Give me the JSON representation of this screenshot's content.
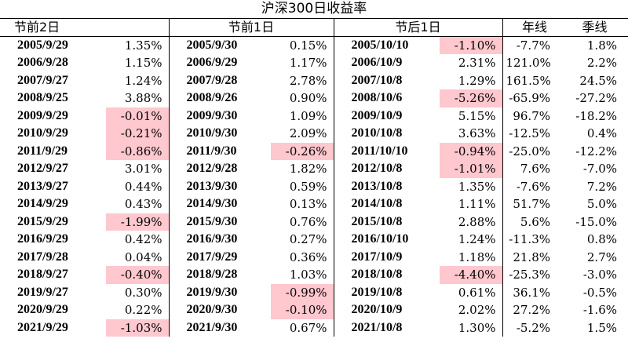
{
  "title": "沪深300日收益率",
  "headers": {
    "pre2": "节前2日",
    "pre1": "节前1日",
    "post1": "节后1日",
    "year": "年线",
    "quarter": "季线"
  },
  "colors": {
    "negative_highlight": "#ffc7ce",
    "border": "#000000"
  },
  "rows": [
    {
      "d1": "2005/9/29",
      "v1": "1.35%",
      "n1": false,
      "d2": "2005/9/30",
      "v2": "0.15%",
      "n2": false,
      "d3": "2005/10/10",
      "v3": "-1.10%",
      "n3": true,
      "yr": "-7.7%",
      "qt": "1.8%"
    },
    {
      "d1": "2006/9/28",
      "v1": "1.15%",
      "n1": false,
      "d2": "2006/9/29",
      "v2": "1.17%",
      "n2": false,
      "d3": "2006/10/9",
      "v3": "2.31%",
      "n3": false,
      "yr": "121.0%",
      "qt": "2.2%"
    },
    {
      "d1": "2007/9/27",
      "v1": "1.24%",
      "n1": false,
      "d2": "2007/9/28",
      "v2": "2.78%",
      "n2": false,
      "d3": "2007/10/8",
      "v3": "1.29%",
      "n3": false,
      "yr": "161.5%",
      "qt": "24.5%"
    },
    {
      "d1": "2008/9/25",
      "v1": "3.88%",
      "n1": false,
      "d2": "2008/9/26",
      "v2": "0.90%",
      "n2": false,
      "d3": "2008/10/6",
      "v3": "-5.26%",
      "n3": true,
      "yr": "-65.9%",
      "qt": "-27.2%"
    },
    {
      "d1": "2009/9/29",
      "v1": "-0.01%",
      "n1": true,
      "d2": "2009/9/30",
      "v2": "1.09%",
      "n2": false,
      "d3": "2009/10/9",
      "v3": "5.15%",
      "n3": false,
      "yr": "96.7%",
      "qt": "-18.2%"
    },
    {
      "d1": "2010/9/29",
      "v1": "-0.21%",
      "n1": true,
      "d2": "2010/9/30",
      "v2": "2.09%",
      "n2": false,
      "d3": "2010/10/8",
      "v3": "3.63%",
      "n3": false,
      "yr": "-12.5%",
      "qt": "0.4%"
    },
    {
      "d1": "2011/9/29",
      "v1": "-0.86%",
      "n1": true,
      "d2": "2011/9/30",
      "v2": "-0.26%",
      "n2": true,
      "d3": "2011/10/10",
      "v3": "-0.94%",
      "n3": true,
      "yr": "-25.0%",
      "qt": "-12.2%"
    },
    {
      "d1": "2012/9/27",
      "v1": "3.01%",
      "n1": false,
      "d2": "2012/9/28",
      "v2": "1.82%",
      "n2": false,
      "d3": "2012/10/8",
      "v3": "-1.01%",
      "n3": true,
      "yr": "7.6%",
      "qt": "-7.0%"
    },
    {
      "d1": "2013/9/27",
      "v1": "0.44%",
      "n1": false,
      "d2": "2013/9/30",
      "v2": "0.59%",
      "n2": false,
      "d3": "2013/10/8",
      "v3": "1.35%",
      "n3": false,
      "yr": "-7.6%",
      "qt": "7.2%"
    },
    {
      "d1": "2014/9/29",
      "v1": "0.43%",
      "n1": false,
      "d2": "2014/9/30",
      "v2": "0.13%",
      "n2": false,
      "d3": "2014/10/8",
      "v3": "1.11%",
      "n3": false,
      "yr": "51.7%",
      "qt": "5.0%"
    },
    {
      "d1": "2015/9/29",
      "v1": "-1.99%",
      "n1": true,
      "d2": "2015/9/30",
      "v2": "0.76%",
      "n2": false,
      "d3": "2015/10/8",
      "v3": "2.88%",
      "n3": false,
      "yr": "5.6%",
      "qt": "-15.0%"
    },
    {
      "d1": "2016/9/29",
      "v1": "0.42%",
      "n1": false,
      "d2": "2016/9/30",
      "v2": "0.27%",
      "n2": false,
      "d3": "2016/10/10",
      "v3": "1.24%",
      "n3": false,
      "yr": "-11.3%",
      "qt": "0.8%"
    },
    {
      "d1": "2017/9/28",
      "v1": "0.04%",
      "n1": false,
      "d2": "2017/9/29",
      "v2": "0.36%",
      "n2": false,
      "d3": "2017/10/9",
      "v3": "1.18%",
      "n3": false,
      "yr": "21.8%",
      "qt": "2.7%"
    },
    {
      "d1": "2018/9/27",
      "v1": "-0.40%",
      "n1": true,
      "d2": "2018/9/28",
      "v2": "1.03%",
      "n2": false,
      "d3": "2018/10/8",
      "v3": "-4.40%",
      "n3": true,
      "yr": "-25.3%",
      "qt": "-3.0%"
    },
    {
      "d1": "2019/9/27",
      "v1": "0.30%",
      "n1": false,
      "d2": "2019/9/30",
      "v2": "-0.99%",
      "n2": true,
      "d3": "2019/10/8",
      "v3": "0.61%",
      "n3": false,
      "yr": "36.1%",
      "qt": "-0.5%"
    },
    {
      "d1": "2020/9/29",
      "v1": "0.22%",
      "n1": false,
      "d2": "2020/9/30",
      "v2": "-0.10%",
      "n2": true,
      "d3": "2020/10/9",
      "v3": "2.02%",
      "n3": false,
      "yr": "27.2%",
      "qt": "-1.6%"
    },
    {
      "d1": "2021/9/29",
      "v1": "-1.03%",
      "n1": true,
      "d2": "2021/9/30",
      "v2": "0.67%",
      "n2": false,
      "d3": "2021/10/8",
      "v3": "1.30%",
      "n3": false,
      "yr": "-5.2%",
      "qt": "1.5%"
    }
  ]
}
